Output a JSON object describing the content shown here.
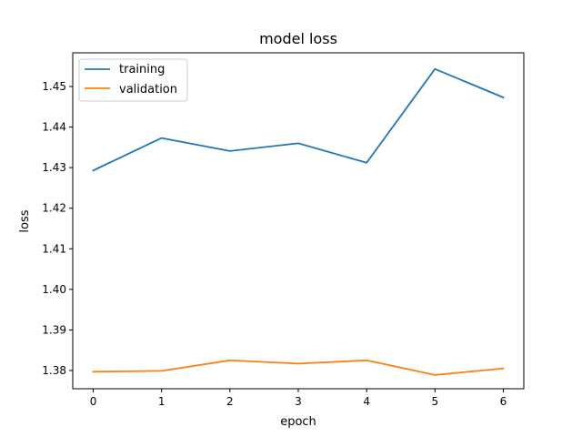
{
  "chart_data": {
    "type": "line",
    "title": "model loss",
    "xlabel": "epoch",
    "ylabel": "loss",
    "x": [
      0,
      1,
      2,
      3,
      4,
      5,
      6
    ],
    "xlim": [
      -0.3,
      6.3
    ],
    "ylim": [
      1.3755,
      1.4583
    ],
    "xticks": [
      0,
      1,
      2,
      3,
      4,
      5,
      6
    ],
    "yticks": [
      1.38,
      1.39,
      1.4,
      1.41,
      1.42,
      1.43,
      1.44,
      1.45
    ],
    "ytick_labels": [
      "1.38",
      "1.39",
      "1.40",
      "1.41",
      "1.42",
      "1.43",
      "1.44",
      "1.45"
    ],
    "grid": false,
    "legend_position": "top-left",
    "series": [
      {
        "name": "training",
        "color": "#1f77b4",
        "values": [
          1.4293,
          1.4373,
          1.4341,
          1.436,
          1.4312,
          1.4543,
          1.4473
        ]
      },
      {
        "name": "validation",
        "color": "#ff7f0e",
        "values": [
          1.3797,
          1.3799,
          1.3825,
          1.3817,
          1.3825,
          1.3789,
          1.3805
        ]
      }
    ]
  }
}
